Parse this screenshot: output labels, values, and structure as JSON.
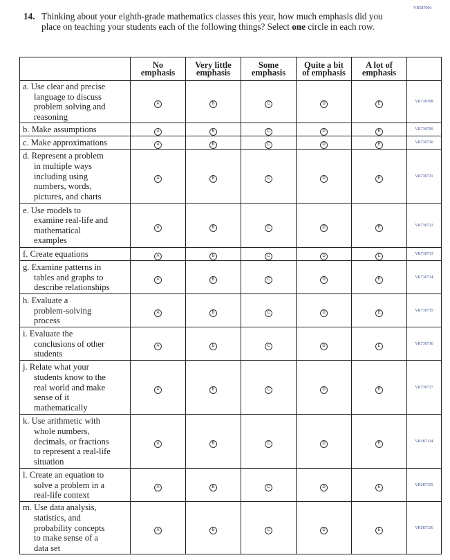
{
  "top_code": "VR587096",
  "question": {
    "number": "14.",
    "text_before": "Thinking about your eighth-grade mathematics classes this year, how much emphasis did you place on teaching your students each of the following things? Select ",
    "text_bold": "one",
    "text_after": " circle in each row."
  },
  "columns": [
    [
      "No",
      "emphasis"
    ],
    [
      "Very little",
      "emphasis"
    ],
    [
      "Some",
      "emphasis"
    ],
    [
      "Quite a bit",
      "of emphasis"
    ],
    [
      "A lot of",
      "emphasis"
    ]
  ],
  "option_letters": [
    "A",
    "B",
    "C",
    "D",
    "E"
  ],
  "rows": [
    {
      "lines": [
        "a. Use clear and precise",
        "language to discuss",
        "problem solving and",
        "reasoning"
      ],
      "code": "VR730708"
    },
    {
      "lines": [
        "b. Make assumptions"
      ],
      "code": "VR730709"
    },
    {
      "lines": [
        "c. Make approximations"
      ],
      "code": "VR730710"
    },
    {
      "lines": [
        "d. Represent a problem",
        "in multiple ways",
        "including using",
        "numbers, words,",
        "pictures, and charts"
      ],
      "code": "VR730711"
    },
    {
      "lines": [
        "e. Use models to",
        "examine real-life and",
        "mathematical",
        "examples"
      ],
      "code": "VR730712"
    },
    {
      "lines": [
        "f. Create equations"
      ],
      "code": "VR730713"
    },
    {
      "lines": [
        "g. Examine patterns in",
        "tables and graphs to",
        "describe relationships"
      ],
      "code": "VR730714"
    },
    {
      "lines": [
        "h. Evaluate a",
        "problem-solving",
        "process"
      ],
      "code": "VR730715"
    },
    {
      "lines": [
        "i. Evaluate the",
        "conclusions of other",
        "students"
      ],
      "code": "VR730716"
    },
    {
      "lines": [
        "j. Relate what your",
        "students know to the",
        "real world and make",
        "sense of it",
        "mathematically"
      ],
      "code": "VR730717"
    },
    {
      "lines": [
        "k. Use arithmetic with",
        "whole numbers,",
        "decimals, or fractions",
        "to represent a real-life",
        "situation"
      ],
      "code": "VR587134"
    },
    {
      "lines": [
        "l. Create an equation to",
        "solve a problem in a",
        "real-life context"
      ],
      "code": "VR587135"
    },
    {
      "lines": [
        "m. Use data analysis,",
        "statistics, and",
        "probability concepts",
        "to make sense of a",
        "data set"
      ],
      "code": "VR587136"
    }
  ]
}
